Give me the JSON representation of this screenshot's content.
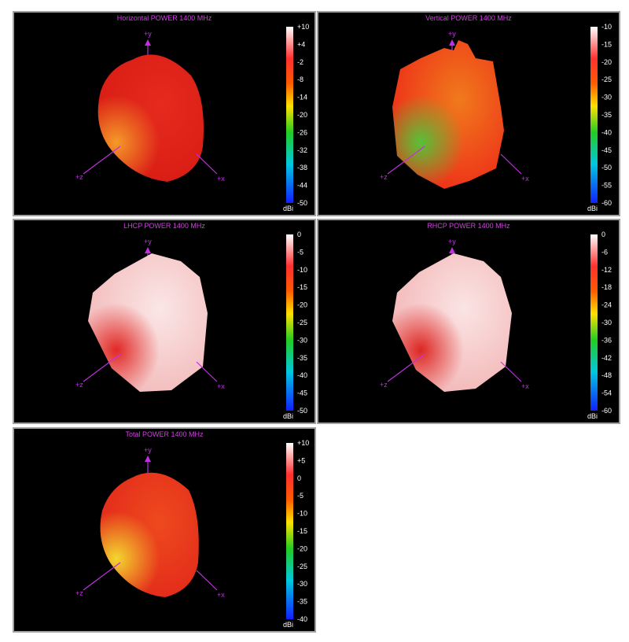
{
  "panels": [
    {
      "title": "Horizontal POWER 1400  MHz",
      "scale": [
        "+10",
        "+4",
        "-2",
        "-8",
        "-14",
        "-20",
        "-26",
        "-32",
        "-38",
        "-44",
        "-50"
      ],
      "unit": "dBi",
      "axes": {
        "y": "+y",
        "x": "+x",
        "z": "+z"
      }
    },
    {
      "title": "Vertical POWER 1400  MHz",
      "scale": [
        "-10",
        "-15",
        "-20",
        "-25",
        "-30",
        "-35",
        "-40",
        "-45",
        "-50",
        "-55",
        "-60"
      ],
      "unit": "dBi",
      "axes": {
        "y": "+y",
        "x": "+x",
        "z": "+z"
      }
    },
    {
      "title": "LHCP POWER 1400  MHz",
      "scale": [
        "0",
        "-5",
        "-10",
        "-15",
        "-20",
        "-25",
        "-30",
        "-35",
        "-40",
        "-45",
        "-50"
      ],
      "unit": "dBi",
      "axes": {
        "y": "+y",
        "x": "+x",
        "z": "+z"
      }
    },
    {
      "title": "RHCP POWER 1400  MHz",
      "scale": [
        "0",
        "-6",
        "-12",
        "-18",
        "-24",
        "-30",
        "-36",
        "-42",
        "-48",
        "-54",
        "-60"
      ],
      "unit": "dBi",
      "axes": {
        "y": "+y",
        "x": "+x",
        "z": "+z"
      }
    },
    {
      "title": "Total POWER 1400  MHz",
      "scale": [
        "+10",
        "+5",
        "0",
        "-5",
        "-10",
        "-15",
        "-20",
        "-25",
        "-30",
        "-35",
        "-40"
      ],
      "unit": "dBi",
      "axes": {
        "y": "+y",
        "x": "+x",
        "z": "+z"
      }
    }
  ]
}
